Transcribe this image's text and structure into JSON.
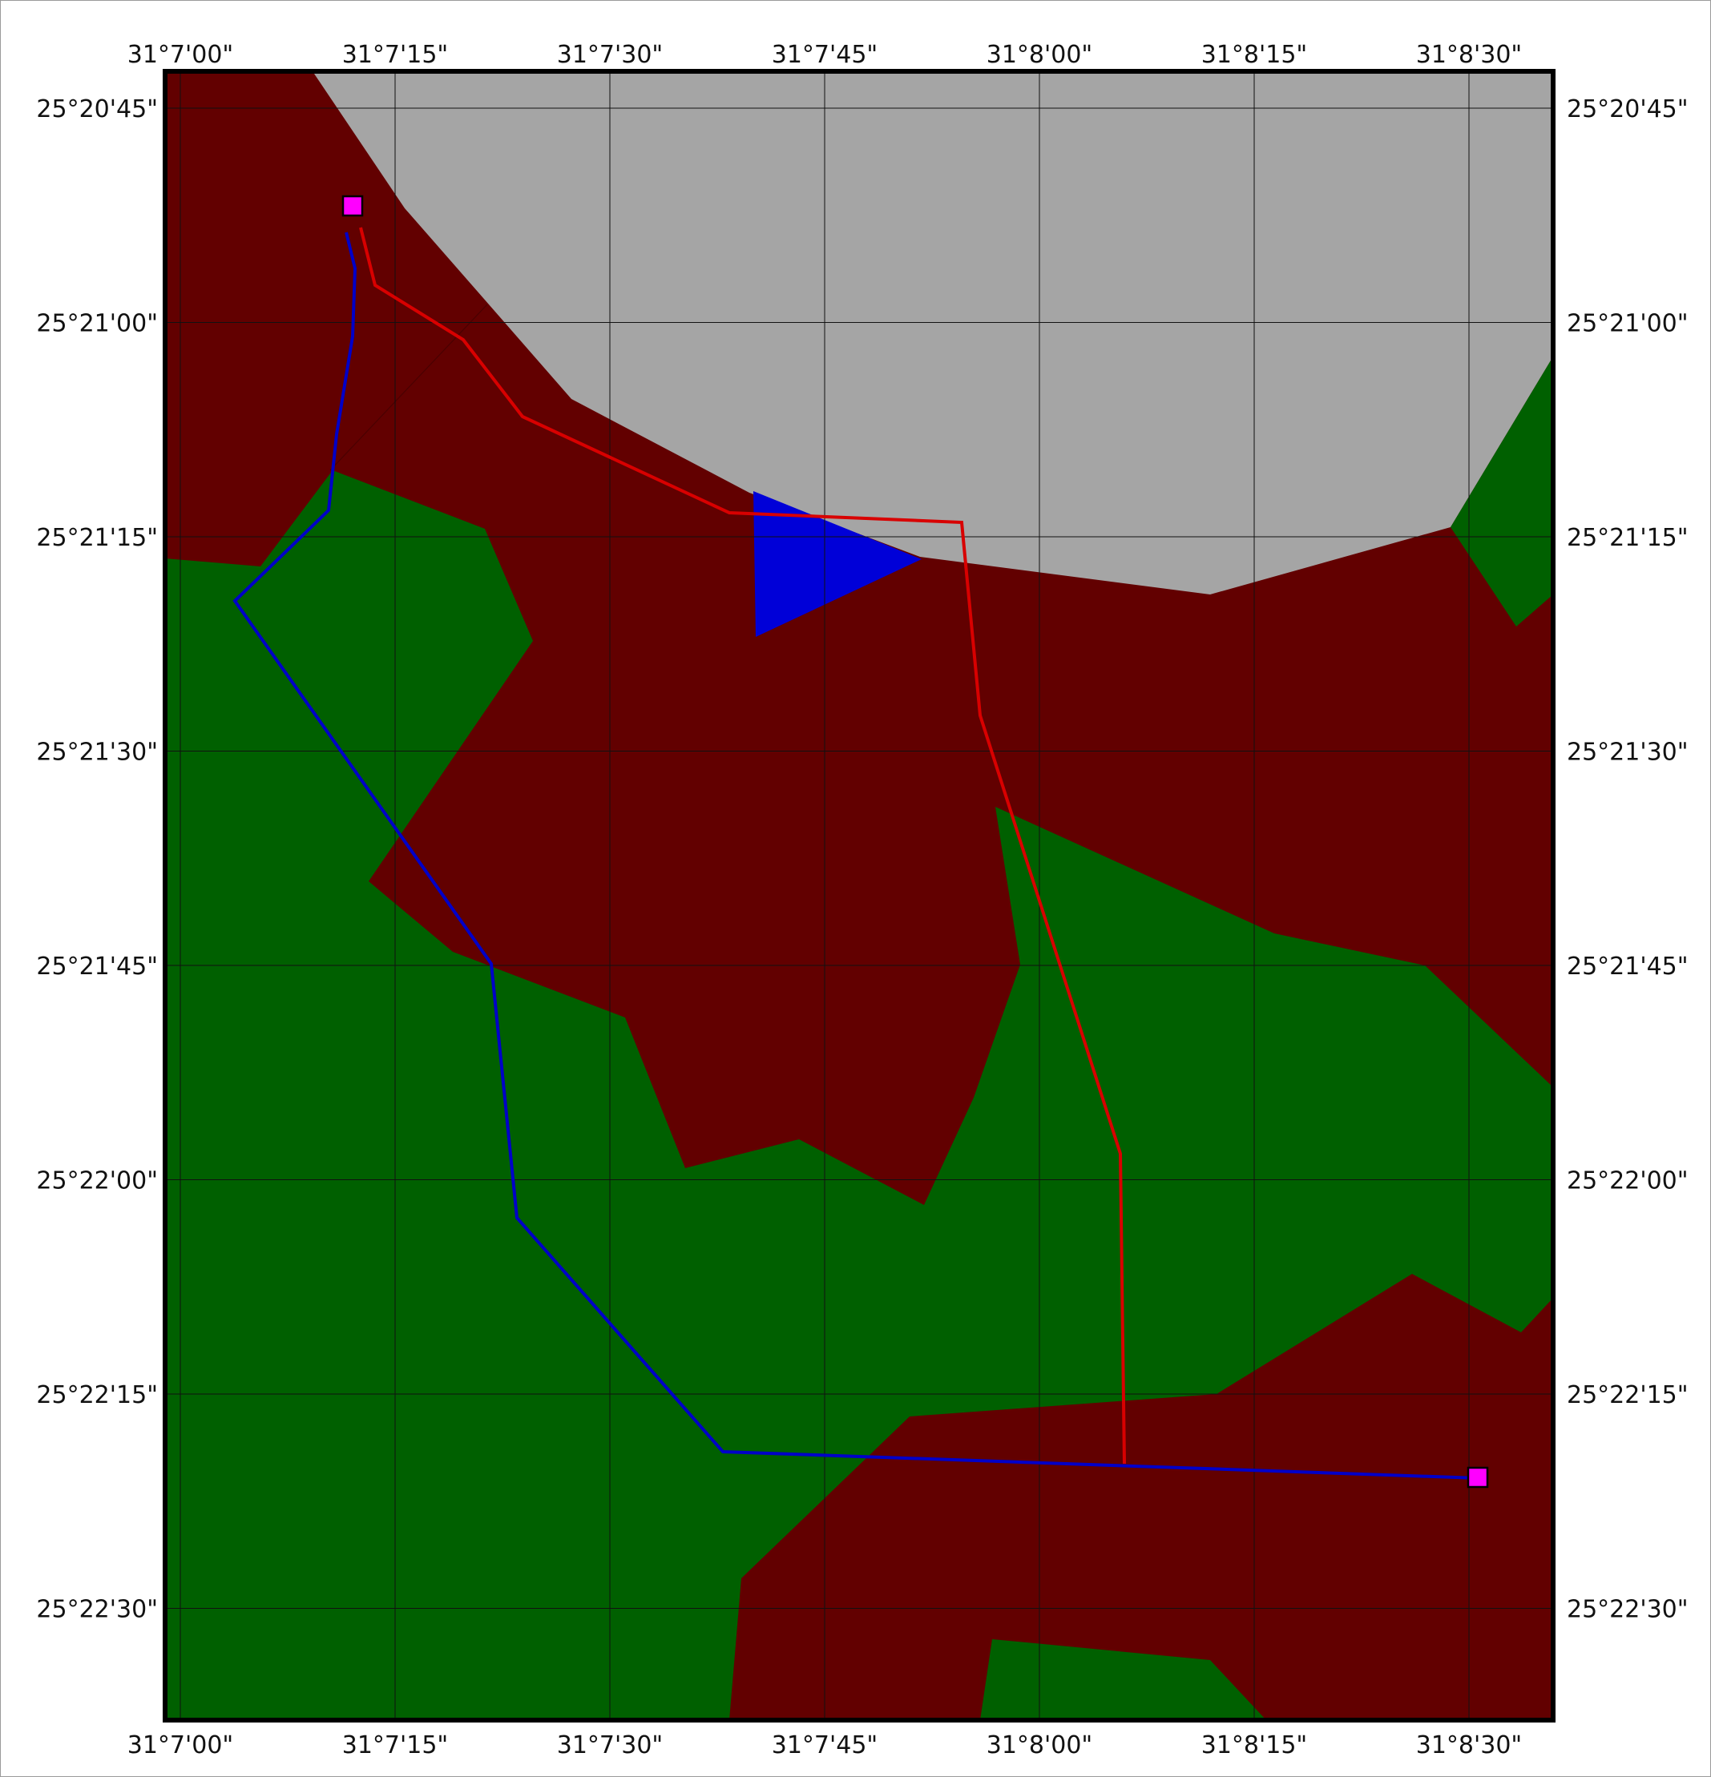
{
  "map": {
    "colors": {
      "background": "#ffffff",
      "barren": "#a5a5a5",
      "dark_red_region": "#620000",
      "green_region": "#006000",
      "water": "#0000d8",
      "grid_line": "#111111",
      "frame": "#000000",
      "route_red": "#d80000",
      "route_blue": "#0000c8",
      "marker": "#ff00ff"
    },
    "longitude_labels": [
      "31°7'00\"",
      "31°7'15\"",
      "31°7'30\"",
      "31°7'45\"",
      "31°8'00\"",
      "31°8'15\"",
      "31°8'30\""
    ],
    "latitude_labels": [
      "25°20'45\"",
      "25°21'00\"",
      "25°21'15\"",
      "25°21'30\"",
      "25°21'45\"",
      "25°22'00\"",
      "25°22'15\"",
      "25°22'30\""
    ],
    "markers": [
      {
        "name": "start-marker-icon",
        "lon": "31°7'12\"",
        "lat": "25°20'52\""
      },
      {
        "name": "end-marker-icon",
        "lon": "31°8'30\"",
        "lat": "25°22'20\""
      }
    ],
    "routes": [
      "red-route",
      "blue-route"
    ]
  }
}
